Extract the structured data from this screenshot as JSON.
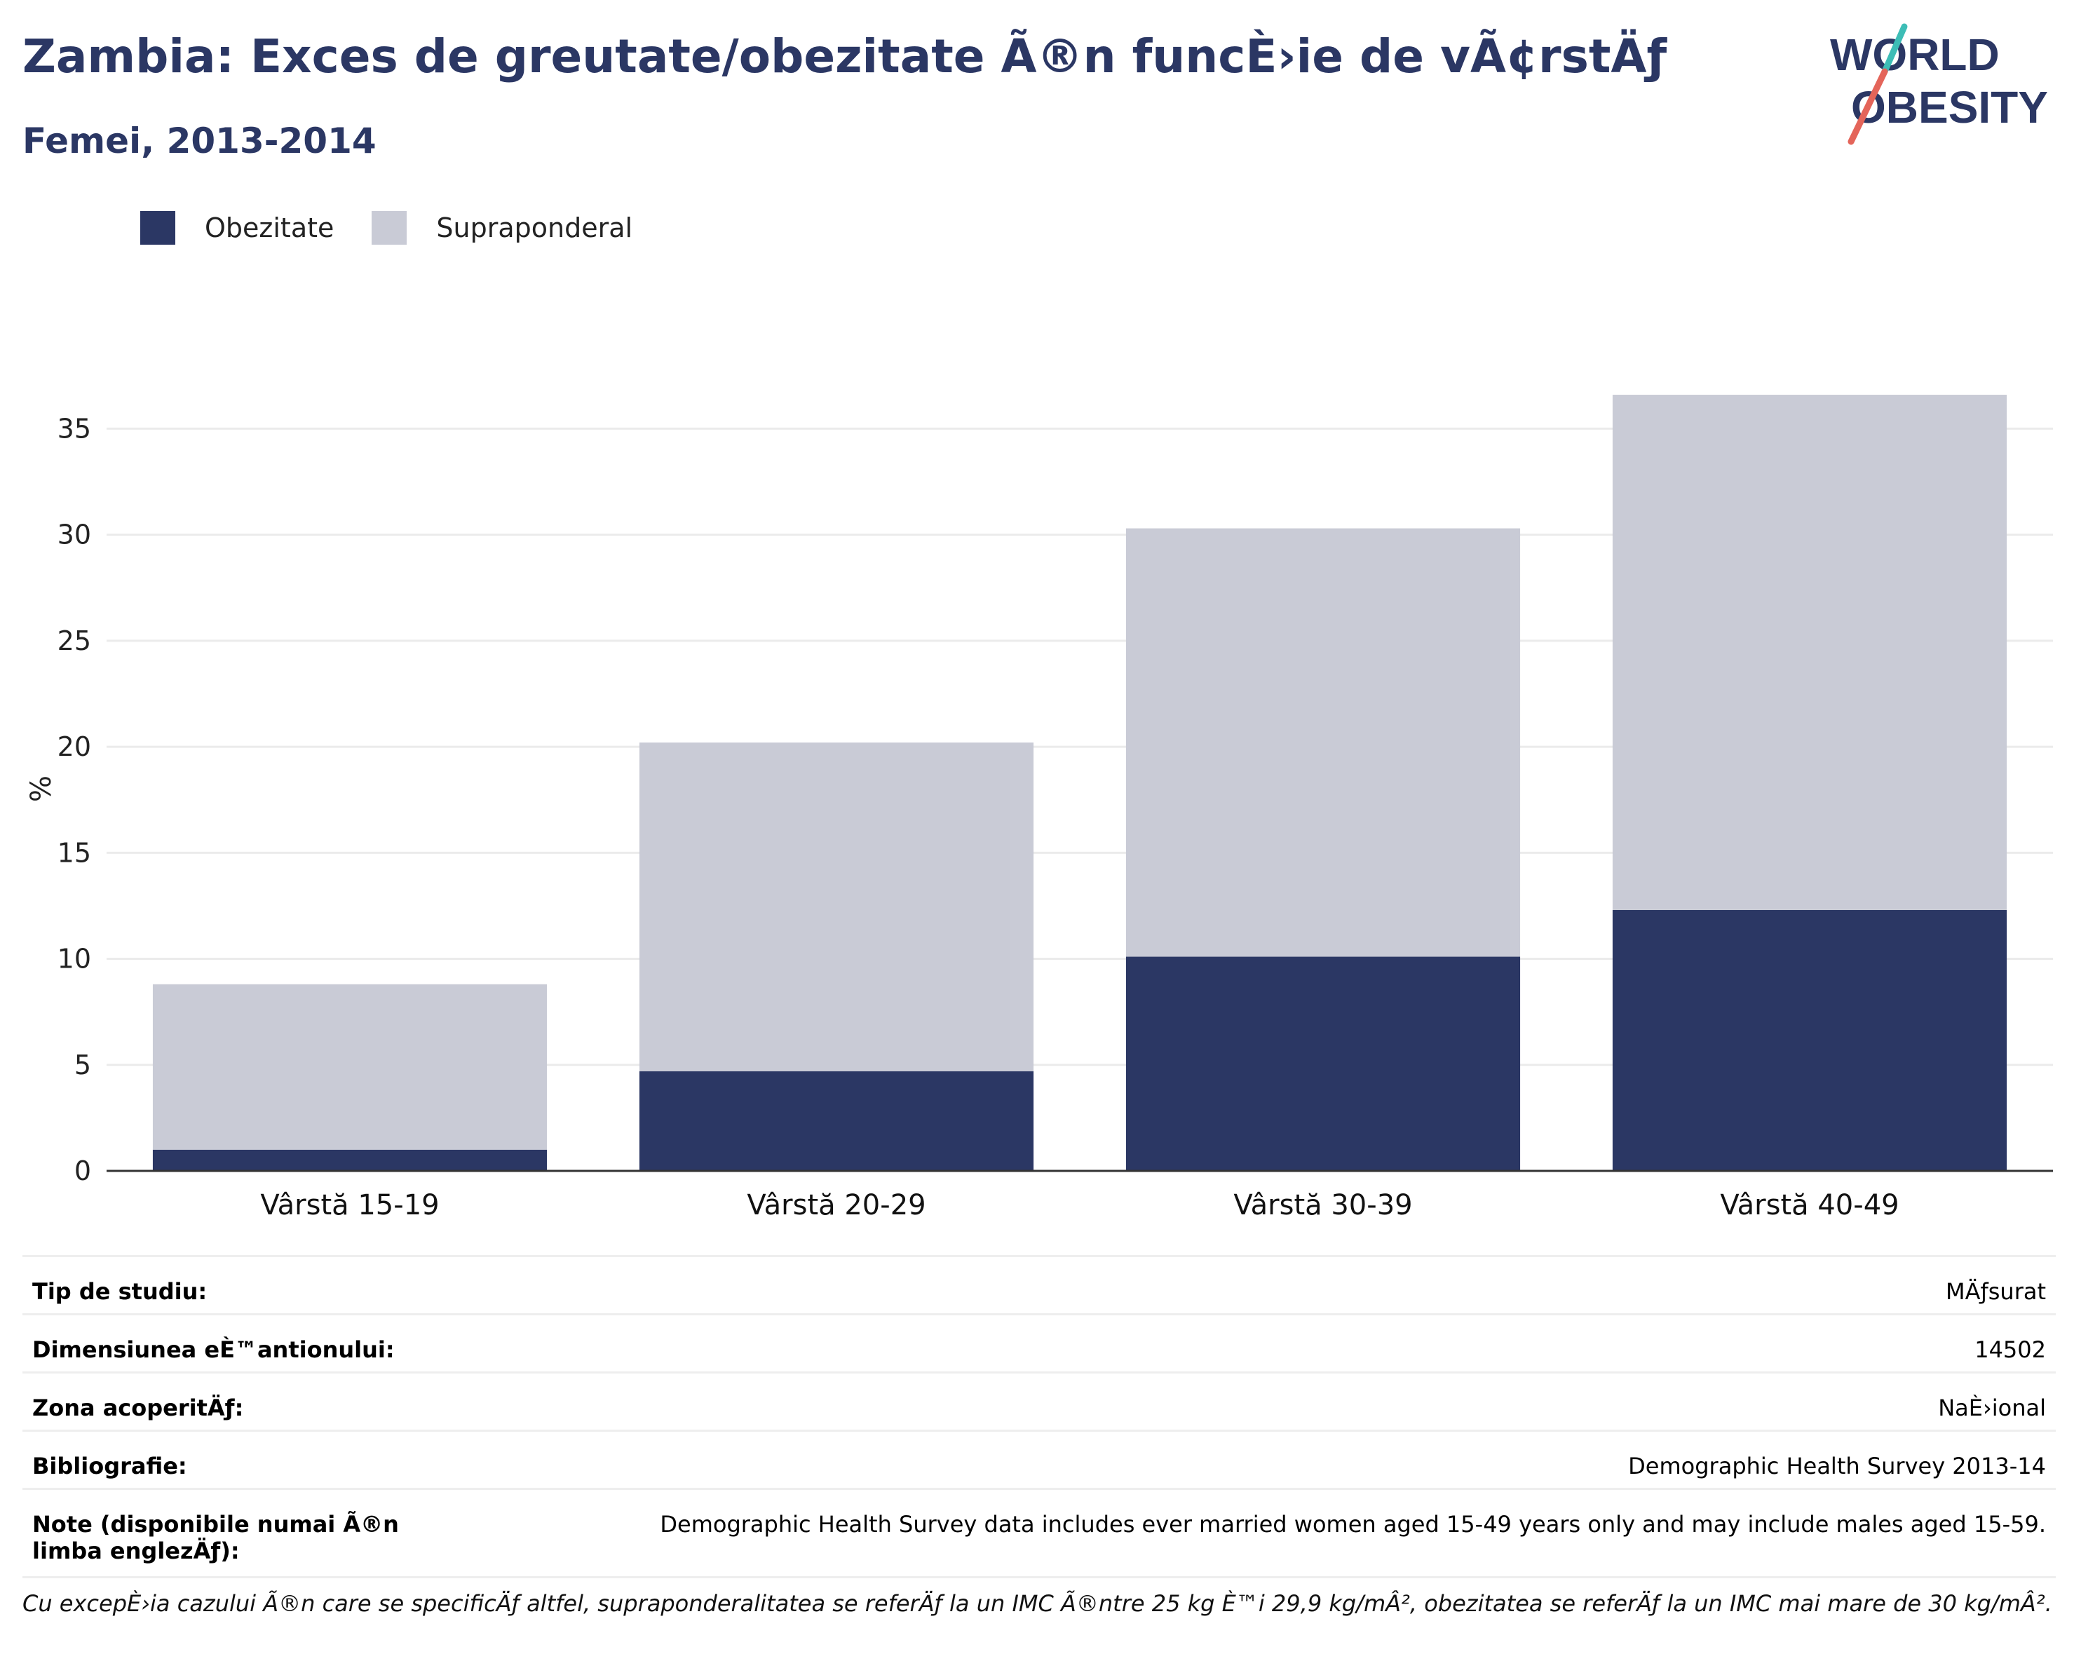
{
  "header": {
    "title": "Zambia: Exces de greutate/obezitate Ã®n funcÈ›ie de vÃ¢rstÄƒ",
    "subtitle": "Femei, 2013-2014"
  },
  "logo": {
    "line1": "WORLD",
    "line2": "OBESITY"
  },
  "legend": [
    {
      "label": "Obezitate",
      "color": "#2b3764"
    },
    {
      "label": "Supraponderal",
      "color": "#c9cbd6"
    }
  ],
  "chart_data": {
    "type": "bar",
    "stacked": true,
    "categories": [
      "Vârstă 15-19",
      "Vârstă 20-29",
      "Vârstă 30-39",
      "Vârstă 40-49"
    ],
    "series": [
      {
        "name": "Obezitate",
        "color": "#2b3764",
        "values": [
          1.0,
          4.7,
          10.1,
          12.3
        ]
      },
      {
        "name": "Supraponderal",
        "color": "#c9cbd6",
        "values": [
          7.8,
          15.5,
          20.2,
          24.3
        ]
      }
    ],
    "ylabel": "%",
    "ylim": [
      0,
      36.7
    ],
    "yticks": [
      0,
      5,
      10,
      15,
      20,
      25,
      30,
      35
    ],
    "grid": true,
    "legend_position": "top-left"
  },
  "info_table": [
    {
      "label": "Tip de studiu:",
      "value": "MÄƒsurat"
    },
    {
      "label": "Dimensiunea eÈ™antionului:",
      "value": "14502"
    },
    {
      "label": "Zona acoperitÄƒ:",
      "value": "NaÈ›ional"
    },
    {
      "label": "Bibliografie:",
      "value": "Demographic Health Survey 2013-14"
    },
    {
      "label": "Note (disponibile numai Ã®n limba englezÄƒ):",
      "value": "Demographic Health Survey data includes ever married women aged 15-49 years only and may include males aged 15-59."
    }
  ],
  "footnote": "Cu excepÈ›ia cazului Ã®n care se specificÄƒ altfel, supraponderalitatea se referÄƒ la un IMC Ã®ntre 25 kg È™i 29,9 kg/mÂ², obezitatea se referÄƒ la un IMC mai mare de 30 kg/mÂ²."
}
